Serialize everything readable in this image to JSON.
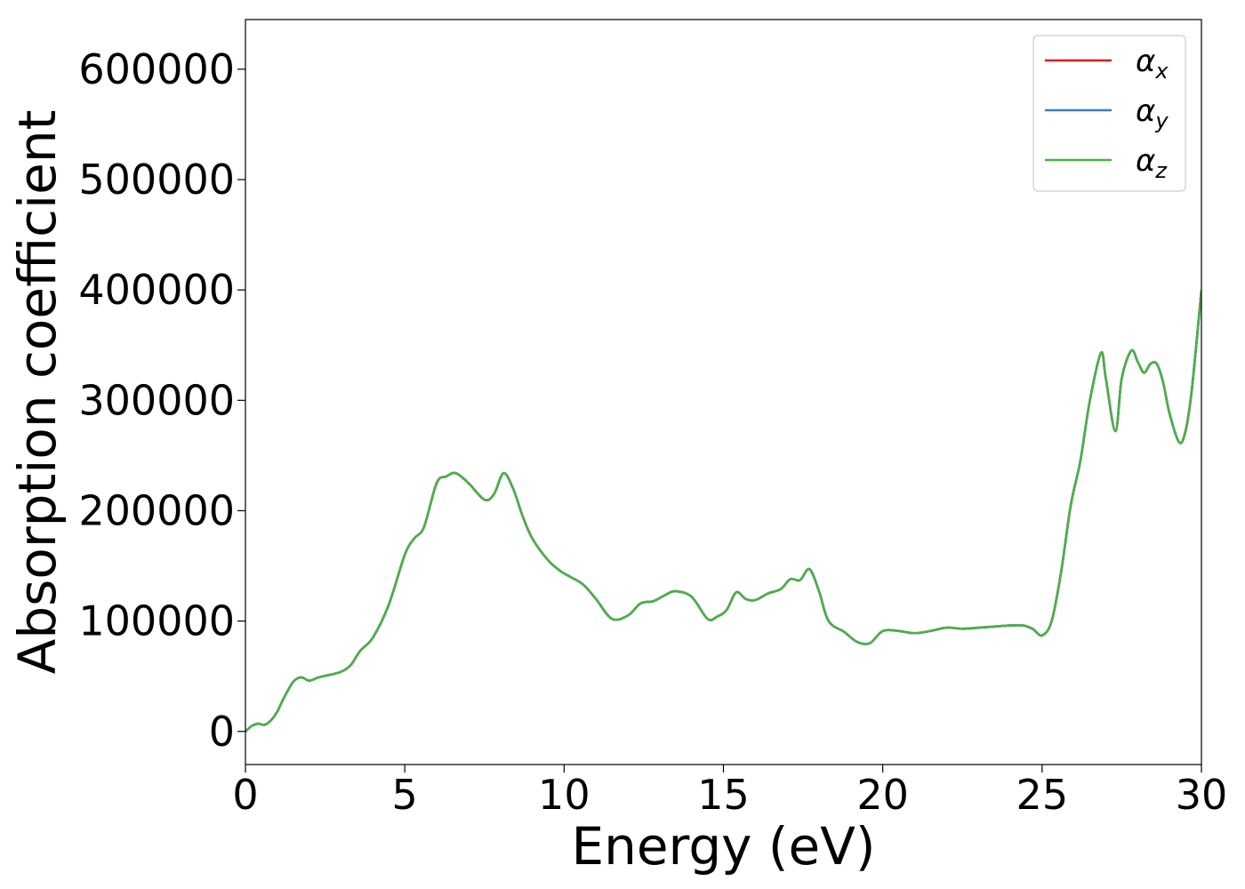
{
  "chart_data": {
    "type": "line",
    "title": "",
    "xlabel": "Energy (eV)",
    "ylabel": "Absorption coefficient",
    "xlim": [
      0,
      30
    ],
    "ylim": [
      -30000,
      645000
    ],
    "xticks": [
      0,
      5,
      10,
      15,
      20,
      25,
      30
    ],
    "yticks": [
      0,
      100000,
      200000,
      300000,
      400000,
      500000,
      600000
    ],
    "xtick_labels": [
      "0",
      "5",
      "10",
      "15",
      "20",
      "25",
      "30"
    ],
    "ytick_labels": [
      "0",
      "100000",
      "200000",
      "300000",
      "400000",
      "500000",
      "600000"
    ],
    "grid": false,
    "legend_position": "top-right",
    "legend": [
      {
        "symbol": "α",
        "sub": "x",
        "color": "#e41a1c"
      },
      {
        "symbol": "α",
        "sub": "y",
        "color": "#377eb8"
      },
      {
        "symbol": "α",
        "sub": "z",
        "color": "#4daf4a"
      }
    ],
    "x": [
      0,
      0.2,
      0.4,
      0.6,
      0.8,
      1.0,
      1.2,
      1.5,
      1.75,
      2.0,
      2.3,
      2.6,
      3.0,
      3.3,
      3.6,
      4.0,
      4.5,
      5.0,
      5.3,
      5.6,
      6.0,
      6.3,
      6.6,
      7.0,
      7.5,
      7.8,
      8.1,
      8.4,
      8.7,
      9.0,
      9.5,
      9.9,
      10.2,
      10.6,
      11.0,
      11.5,
      12.0,
      12.4,
      12.8,
      13.2,
      13.5,
      14.0,
      14.5,
      14.8,
      15.1,
      15.4,
      15.7,
      16.0,
      16.4,
      16.8,
      17.1,
      17.4,
      17.7,
      18.0,
      18.3,
      18.8,
      19.2,
      19.6,
      20.0,
      20.5,
      21.0,
      21.5,
      22.0,
      22.5,
      23.0,
      23.5,
      24.0,
      24.4,
      24.7,
      25.0,
      25.3,
      25.6,
      25.9,
      26.2,
      26.5,
      26.85,
      27.0,
      27.3,
      27.5,
      27.8,
      28.0,
      28.2,
      28.4,
      28.6,
      28.8,
      29.0,
      29.3,
      29.5,
      29.7,
      30.0
    ],
    "series": [
      {
        "name": "αx",
        "color": "#e41a1c",
        "values": [
          0,
          5000,
          7000,
          6000,
          10000,
          18000,
          30000,
          45000,
          49000,
          46000,
          49000,
          51000,
          54000,
          60000,
          73000,
          85000,
          115000,
          160000,
          175000,
          185000,
          225000,
          231000,
          234000,
          225000,
          210000,
          215000,
          234000,
          220000,
          195000,
          175000,
          155000,
          145000,
          140000,
          133000,
          120000,
          102000,
          105000,
          116000,
          118000,
          124000,
          127000,
          122000,
          102000,
          104000,
          110000,
          126000,
          120000,
          119000,
          125000,
          129000,
          138000,
          137000,
          147000,
          127000,
          100000,
          90000,
          81000,
          80000,
          91000,
          91000,
          89000,
          91000,
          94000,
          93000,
          94000,
          95000,
          96000,
          96000,
          93000,
          87000,
          100000,
          145000,
          205000,
          245000,
          300000,
          343000,
          320000,
          272000,
          320000,
          345000,
          335000,
          325000,
          333000,
          333000,
          316000,
          288000,
          262000,
          272000,
          310000,
          400000
        ]
      },
      {
        "name": "αy",
        "color": "#377eb8",
        "values": [
          0,
          5000,
          7000,
          6000,
          10000,
          18000,
          30000,
          45000,
          49000,
          46000,
          49000,
          51000,
          54000,
          60000,
          73000,
          85000,
          115000,
          160000,
          175000,
          185000,
          225000,
          231000,
          234000,
          225000,
          210000,
          215000,
          234000,
          220000,
          195000,
          175000,
          155000,
          145000,
          140000,
          133000,
          120000,
          102000,
          105000,
          116000,
          118000,
          124000,
          127000,
          122000,
          102000,
          104000,
          110000,
          126000,
          120000,
          119000,
          125000,
          129000,
          138000,
          137000,
          147000,
          127000,
          100000,
          90000,
          81000,
          80000,
          91000,
          91000,
          89000,
          91000,
          94000,
          93000,
          94000,
          95000,
          96000,
          96000,
          93000,
          87000,
          100000,
          145000,
          205000,
          245000,
          300000,
          343000,
          320000,
          272000,
          320000,
          345000,
          335000,
          325000,
          333000,
          333000,
          316000,
          288000,
          262000,
          272000,
          310000,
          400000
        ]
      },
      {
        "name": "αz",
        "color": "#4daf4a",
        "values": [
          0,
          5000,
          7000,
          6000,
          10000,
          18000,
          30000,
          45000,
          49000,
          46000,
          49000,
          51000,
          54000,
          60000,
          73000,
          85000,
          115000,
          160000,
          175000,
          185000,
          225000,
          231000,
          234000,
          225000,
          210000,
          215000,
          234000,
          220000,
          195000,
          175000,
          155000,
          145000,
          140000,
          133000,
          120000,
          102000,
          105000,
          116000,
          118000,
          124000,
          127000,
          122000,
          102000,
          104000,
          110000,
          126000,
          120000,
          119000,
          125000,
          129000,
          138000,
          137000,
          147000,
          127000,
          100000,
          90000,
          81000,
          80000,
          91000,
          91000,
          89000,
          91000,
          94000,
          93000,
          94000,
          95000,
          96000,
          96000,
          93000,
          87000,
          100000,
          145000,
          205000,
          245000,
          300000,
          343000,
          320000,
          272000,
          320000,
          345000,
          335000,
          325000,
          333000,
          333000,
          316000,
          288000,
          262000,
          272000,
          310000,
          400000
        ]
      }
    ]
  }
}
